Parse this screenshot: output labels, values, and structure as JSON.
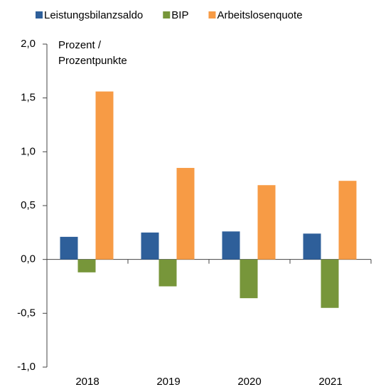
{
  "chart_data": {
    "type": "bar",
    "ylabel": [
      "Prozent /",
      "Prozentpunkte"
    ],
    "categories": [
      "2018",
      "2019",
      "2020",
      "2021"
    ],
    "series": [
      {
        "name": "Leistungsbilanzsaldo",
        "color": "#2e5f9a",
        "values": [
          0.21,
          0.25,
          0.26,
          0.24
        ]
      },
      {
        "name": "BIP",
        "color": "#77963a",
        "values": [
          -0.12,
          -0.25,
          -0.36,
          -0.45
        ]
      },
      {
        "name": "Arbeitslosenquote",
        "color": "#f79b45",
        "values": [
          1.56,
          0.85,
          0.69,
          0.73
        ]
      }
    ],
    "ylim": [
      -1.0,
      2.0
    ],
    "yticks": [
      {
        "value": -1.0,
        "label": "-1,0"
      },
      {
        "value": -0.5,
        "label": "-0,5"
      },
      {
        "value": 0,
        "label": "0,0"
      },
      {
        "value": 0.5,
        "label": "0,5"
      },
      {
        "value": 1.0,
        "label": "1,0"
      },
      {
        "value": 1.5,
        "label": "1,5"
      },
      {
        "value": 2.0,
        "label": "2,0"
      }
    ],
    "legend": "top"
  }
}
